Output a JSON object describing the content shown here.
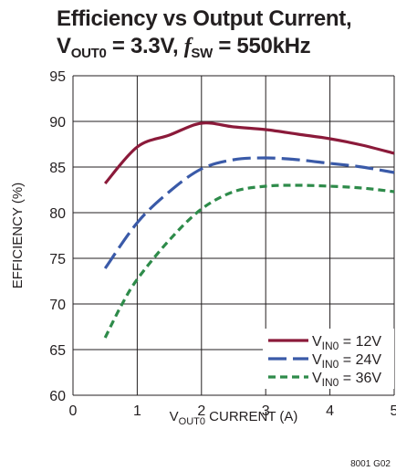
{
  "chart_data": {
    "type": "line",
    "title": {
      "line1": "Efficiency vs Output Current,",
      "line2_parts": [
        "V",
        "OUT0",
        " = 3.3V, ",
        "f",
        "SW",
        " = 550kHz"
      ]
    },
    "xlabel": {
      "main": "V",
      "sub": "OUT0",
      "rest": " CURRENT (A)"
    },
    "ylabel": "EFFICIENCY (%)",
    "xlim": [
      0,
      5
    ],
    "ylim": [
      60,
      95
    ],
    "xticks": [
      0,
      1,
      2,
      3,
      4,
      5
    ],
    "yticks": [
      60,
      65,
      70,
      75,
      80,
      85,
      90,
      95
    ],
    "grid": true,
    "legend_position": "bottom-right",
    "series": [
      {
        "name_main": "V",
        "name_sub": "IN0",
        "name_rest": " = 12V",
        "color": "#8b1a3a",
        "dash": "solid",
        "x": [
          0.5,
          1,
          1.5,
          2,
          2.5,
          3,
          3.5,
          4,
          4.5,
          5
        ],
        "y": [
          83.2,
          87.2,
          88.5,
          89.8,
          89.4,
          89.1,
          88.6,
          88.1,
          87.4,
          86.5
        ]
      },
      {
        "name_main": "V",
        "name_sub": "IN0",
        "name_rest": " = 24V",
        "color": "#3a5aa8",
        "dash": "long-dash",
        "x": [
          0.5,
          1,
          1.5,
          2,
          2.5,
          3,
          3.5,
          4,
          4.5,
          5
        ],
        "y": [
          73.9,
          78.9,
          82.3,
          84.8,
          85.8,
          86.0,
          85.8,
          85.4,
          85.0,
          84.4
        ]
      },
      {
        "name_main": "V",
        "name_sub": "IN0",
        "name_rest": " = 36V",
        "color": "#2e8b4a",
        "dash": "short-dash",
        "x": [
          0.5,
          0.75,
          1,
          1.5,
          2,
          2.5,
          3,
          3.5,
          4,
          4.5,
          5
        ],
        "y": [
          66.3,
          69.8,
          72.7,
          77.0,
          80.4,
          82.3,
          82.9,
          83.0,
          82.9,
          82.7,
          82.3
        ]
      }
    ],
    "figure_code": "8001 G02"
  }
}
